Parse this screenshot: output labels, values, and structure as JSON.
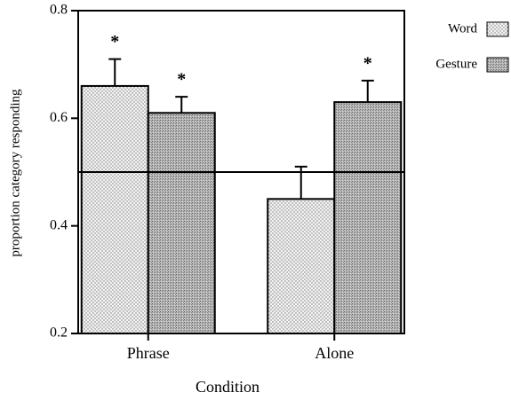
{
  "chart_data": {
    "type": "bar",
    "categories": [
      "Phrase",
      "Alone"
    ],
    "series": [
      {
        "name": "Word",
        "color": "#ececec",
        "values": [
          0.66,
          0.45
        ],
        "errors": [
          0.05,
          0.06
        ],
        "markers": [
          "*",
          null
        ]
      },
      {
        "name": "Gesture",
        "color": "#a9a9a9",
        "values": [
          0.61,
          0.63
        ],
        "errors": [
          0.03,
          0.04
        ],
        "markers": [
          "*",
          "*"
        ]
      }
    ],
    "x_label": "Condition",
    "y_label": "proportion category responding",
    "ylim": [
      0.2,
      0.8
    ],
    "yticks": [
      0.2,
      0.4,
      0.6,
      0.8
    ],
    "reference_line": 0.5,
    "legend": "top-right"
  }
}
